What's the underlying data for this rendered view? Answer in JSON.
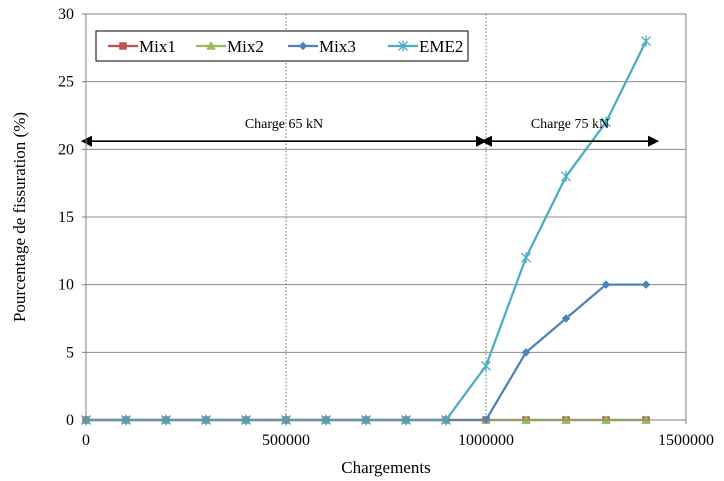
{
  "chart_data": {
    "type": "line",
    "title": "",
    "xlabel": "Chargements",
    "ylabel": "Pourcentage de fissuration (%)",
    "xlim": [
      0,
      1500000
    ],
    "ylim": [
      0,
      30
    ],
    "xticks": [
      0,
      500000,
      1000000,
      1500000
    ],
    "yticks": [
      0,
      5,
      10,
      15,
      20,
      25,
      30
    ],
    "x_tick_labels": [
      "0",
      "500000",
      "1000000",
      "1500000"
    ],
    "y_tick_labels": [
      "0",
      "5",
      "10",
      "15",
      "20",
      "25",
      "30"
    ],
    "grid": {
      "vertical": "dotted",
      "horizontal": "solid"
    },
    "legend_position": "top-left",
    "x": [
      0,
      100000,
      200000,
      300000,
      400000,
      500000,
      600000,
      700000,
      800000,
      900000,
      1000000,
      1100000,
      1200000,
      1300000,
      1400000
    ],
    "series": [
      {
        "name": "Mix1",
        "color": "#c0504d",
        "marker": "square",
        "values": [
          0,
          0,
          0,
          0,
          0,
          0,
          0,
          0,
          0,
          0,
          0,
          0,
          0,
          0,
          0
        ]
      },
      {
        "name": "Mix2",
        "color": "#9bbb59",
        "marker": "triangle",
        "values": [
          0,
          0,
          0,
          0,
          0,
          0,
          0,
          0,
          0,
          0,
          0,
          0,
          0,
          0,
          0
        ]
      },
      {
        "name": "Mix3",
        "color": "#4f81bd",
        "marker": "diamond",
        "values": [
          0,
          0,
          0,
          0,
          0,
          0,
          0,
          0,
          0,
          0,
          0,
          5,
          7.5,
          10,
          10
        ]
      },
      {
        "name": "EME2",
        "color": "#4bacc6",
        "marker": "star",
        "values": [
          0,
          0,
          0,
          0,
          0,
          0,
          0,
          0,
          0,
          0,
          4,
          12,
          18,
          22,
          28
        ]
      }
    ],
    "annotations": [
      {
        "text": "Charge 65 kN",
        "x_from": 0,
        "x_to": 1000000,
        "y": 20.6
      },
      {
        "text": "Charge 75 kN",
        "x_from": 1000000,
        "x_to": 1430000,
        "y": 20.6
      }
    ]
  }
}
